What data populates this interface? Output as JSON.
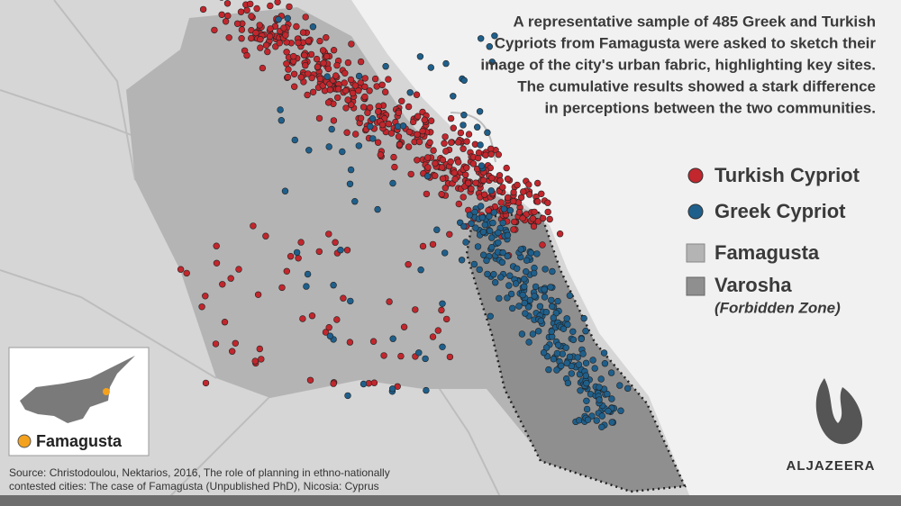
{
  "description": {
    "lines": [
      "A representative sample of 485 Greek and Turkish",
      "Cypriots from Famagusta were asked to sketch their",
      "image of the city's urban fabric, highlighting key sites.",
      "The cumulative results showed a stark difference",
      "in perceptions between the two communities."
    ]
  },
  "legend": [
    {
      "label": "Turkish Cypriot"
    },
    {
      "label": "Greek Cypriot"
    },
    {
      "label": "Famagusta"
    },
    {
      "label": "Varosha",
      "sublabel": "(Forbidden Zone)"
    }
  ],
  "inset": {
    "label": "Famagusta"
  },
  "source": {
    "lines": [
      "Source: Christodoulou, Nektarios, 2016, The role of planning in ethno-nationally",
      "contested cities: The case of Famagusta (Unpublished PhD), Nicosia: Cyprus"
    ]
  },
  "logo": {
    "text": "ALJAZEERA"
  }
}
